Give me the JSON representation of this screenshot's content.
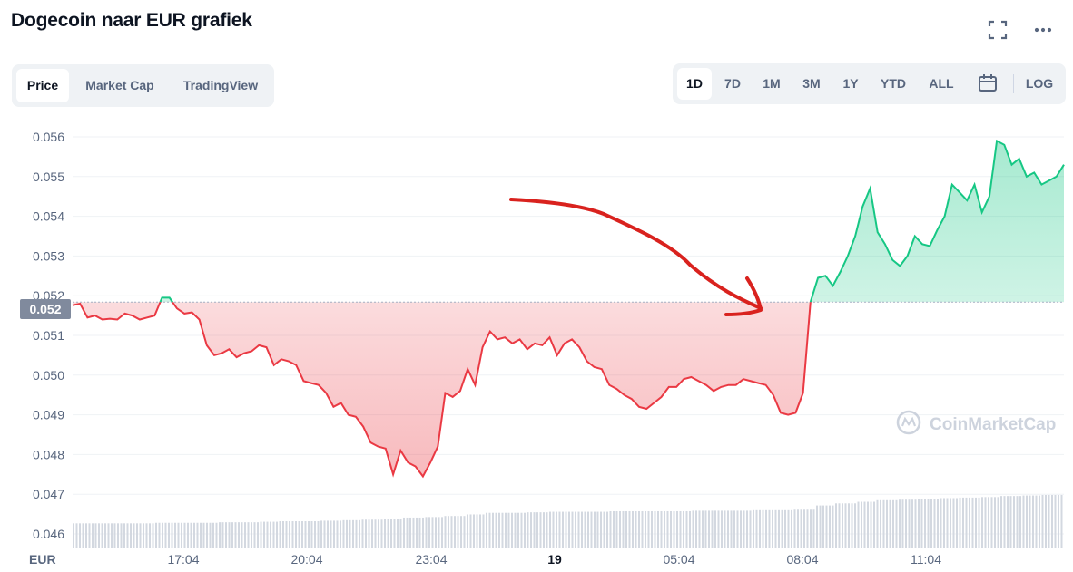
{
  "header": {
    "title": "Dogecoin naar EUR grafiek",
    "fullscreen_icon": "fullscreen-icon",
    "more_icon": "more-horizontal-icon"
  },
  "view_tabs": [
    {
      "label": "Price",
      "active": true
    },
    {
      "label": "Market Cap",
      "active": false
    },
    {
      "label": "TradingView",
      "active": false
    }
  ],
  "range_tabs": [
    {
      "label": "1D",
      "active": true
    },
    {
      "label": "7D",
      "active": false
    },
    {
      "label": "1M",
      "active": false
    },
    {
      "label": "3M",
      "active": false
    },
    {
      "label": "1Y",
      "active": false
    },
    {
      "label": "YTD",
      "active": false
    },
    {
      "label": "ALL",
      "active": false
    }
  ],
  "calendar_icon": "calendar-icon",
  "log_label": "LOG",
  "watermark": "CoinMarketCap",
  "colors": {
    "up": "#16c784",
    "down": "#ea3943",
    "annotation": "#d9221e",
    "axis_text": "#58667e",
    "volume": "#c5cad3"
  },
  "chart_data": {
    "type": "area",
    "currency_label": "EUR",
    "ylim": [
      0.0455,
      0.0565
    ],
    "y_ticks": [
      "0.056",
      "0.055",
      "0.054",
      "0.053",
      "0.052",
      "0.051",
      "0.050",
      "0.049",
      "0.048",
      "0.047",
      "0.046"
    ],
    "x_ticks": [
      "17:04",
      "20:04",
      "23:04",
      "19",
      "05:04",
      "08:04",
      "11:04"
    ],
    "baseline_value": 0.05184,
    "baseline_label": "0.052",
    "series": [
      {
        "values": [
          0.05176,
          0.0518,
          0.05145,
          0.0515,
          0.0514,
          0.05142,
          0.0514,
          0.05155,
          0.0515,
          0.0514,
          0.05145,
          0.0515,
          0.05195,
          0.05195,
          0.05168,
          0.05155,
          0.05158,
          0.0514,
          0.05075,
          0.0505,
          0.05055,
          0.05065,
          0.05045,
          0.05055,
          0.0506,
          0.05075,
          0.0507,
          0.05025,
          0.0504,
          0.05035,
          0.05025,
          0.04985,
          0.0498,
          0.04975,
          0.04955,
          0.0492,
          0.0493,
          0.049,
          0.04895,
          0.0487,
          0.0483,
          0.0482,
          0.04815,
          0.0475,
          0.0481,
          0.0478,
          0.0477,
          0.04745,
          0.0478,
          0.0482,
          0.04955,
          0.04945,
          0.0496,
          0.05015,
          0.04975,
          0.0507,
          0.0511,
          0.0509,
          0.05095,
          0.0508,
          0.0509,
          0.05065,
          0.0508,
          0.05075,
          0.05095,
          0.0505,
          0.0508,
          0.0509,
          0.0507,
          0.05035,
          0.0502,
          0.05015,
          0.04975,
          0.04965,
          0.0495,
          0.0494,
          0.0492,
          0.04915,
          0.0493,
          0.04945,
          0.0497,
          0.0497,
          0.0499,
          0.04995,
          0.04985,
          0.04975,
          0.0496,
          0.0497,
          0.04975,
          0.04975,
          0.0499,
          0.04985,
          0.0498,
          0.04975,
          0.0495,
          0.04905,
          0.049,
          0.04905,
          0.04955,
          0.05184,
          0.05245,
          0.0525,
          0.05225,
          0.0526,
          0.053,
          0.0535,
          0.05425,
          0.0547,
          0.0536,
          0.0533,
          0.0529,
          0.05275,
          0.053,
          0.0535,
          0.0533,
          0.05325,
          0.05365,
          0.054,
          0.0548,
          0.0546,
          0.0544,
          0.0548,
          0.0541,
          0.0545,
          0.0559,
          0.0558,
          0.0553,
          0.05545,
          0.055,
          0.0551,
          0.0548,
          0.0549,
          0.055,
          0.0553
        ],
        "x_start": "15:14",
        "x_end": "14:14",
        "up_color": "#16c784",
        "down_color": "#ea3943"
      }
    ],
    "volume": {
      "values": [
        0.46,
        0.46,
        0.46,
        0.46,
        0.47,
        0.47,
        0.47,
        0.48,
        0.48,
        0.49,
        0.5,
        0.5,
        0.51,
        0.52,
        0.53,
        0.55,
        0.57,
        0.58,
        0.6,
        0.63,
        0.66,
        0.66,
        0.67,
        0.68,
        0.68,
        0.68,
        0.69,
        0.69,
        0.69,
        0.69,
        0.7,
        0.7,
        0.7,
        0.71,
        0.71,
        0.72,
        0.8,
        0.84,
        0.87,
        0.9,
        0.91,
        0.92,
        0.94,
        0.95,
        0.96,
        0.98,
        0.99,
        1.0
      ]
    },
    "grid": true,
    "legend": "none"
  }
}
